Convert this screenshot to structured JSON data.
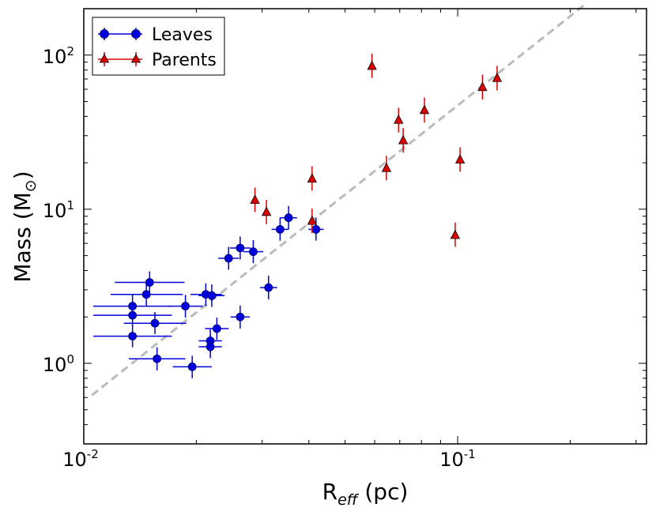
{
  "chart_data": {
    "type": "scatter",
    "xscale": "log",
    "yscale": "log",
    "xlim": [
      0.01,
      0.32
    ],
    "ylim": [
      0.3,
      200
    ],
    "xlabel": {
      "base": "R",
      "sub": "eff",
      "unit": " (pc)"
    },
    "ylabel": {
      "text": "Mass (M",
      "sub": "⊙",
      "close": ")"
    },
    "xticks": [
      {
        "value": 0.01,
        "base": "10",
        "exp": "-2"
      },
      {
        "value": 0.1,
        "base": "10",
        "exp": "-1"
      }
    ],
    "yticks": [
      {
        "value": 1,
        "base": "10",
        "exp": "0"
      },
      {
        "value": 10,
        "base": "10",
        "exp": "1"
      },
      {
        "value": 100,
        "base": "10",
        "exp": "2"
      }
    ],
    "legend": {
      "position": "top-left"
    },
    "fit_line": {
      "style": "dashed",
      "color": "#bbbbbb",
      "points": [
        [
          0.0105,
          0.62
        ],
        [
          0.218,
          211
        ]
      ]
    },
    "series": [
      {
        "name": "Leaves",
        "marker": "circle",
        "color": "#0000dd",
        "points": [
          {
            "x": 0.0135,
            "y": 2.35,
            "xlo": 0.0106,
            "xhi": 0.0172,
            "ylo": 1.98,
            "yhi": 2.78
          },
          {
            "x": 0.0135,
            "y": 2.05,
            "xlo": 0.0106,
            "xhi": 0.0172,
            "ylo": 1.73,
            "yhi": 2.42
          },
          {
            "x": 0.0135,
            "y": 1.5,
            "xlo": 0.0106,
            "xhi": 0.0172,
            "ylo": 1.27,
            "yhi": 1.78
          },
          {
            "x": 0.0147,
            "y": 2.8,
            "xlo": 0.0118,
            "xhi": 0.0184,
            "ylo": 2.35,
            "yhi": 3.3
          },
          {
            "x": 0.015,
            "y": 3.35,
            "xlo": 0.0121,
            "xhi": 0.0186,
            "ylo": 2.85,
            "yhi": 3.95
          },
          {
            "x": 0.0155,
            "y": 1.82,
            "xlo": 0.0128,
            "xhi": 0.0188,
            "ylo": 1.55,
            "yhi": 2.15
          },
          {
            "x": 0.0157,
            "y": 1.07,
            "xlo": 0.0132,
            "xhi": 0.0187,
            "ylo": 0.9,
            "yhi": 1.27
          },
          {
            "x": 0.0187,
            "y": 2.35,
            "xlo": 0.0168,
            "xhi": 0.0208,
            "ylo": 1.98,
            "yhi": 2.78
          },
          {
            "x": 0.0195,
            "y": 0.95,
            "xlo": 0.0173,
            "xhi": 0.022,
            "ylo": 0.8,
            "yhi": 1.12
          },
          {
            "x": 0.0212,
            "y": 2.8,
            "xlo": 0.0193,
            "xhi": 0.0234,
            "ylo": 2.35,
            "yhi": 3.3
          },
          {
            "x": 0.022,
            "y": 2.75,
            "xlo": 0.0203,
            "xhi": 0.0238,
            "ylo": 2.32,
            "yhi": 3.25
          },
          {
            "x": 0.0218,
            "y": 1.4,
            "xlo": 0.0203,
            "xhi": 0.0234,
            "ylo": 1.18,
            "yhi": 1.66
          },
          {
            "x": 0.0218,
            "y": 1.28,
            "xlo": 0.0203,
            "xhi": 0.0234,
            "ylo": 1.08,
            "yhi": 1.52
          },
          {
            "x": 0.0227,
            "y": 1.68,
            "xlo": 0.0211,
            "xhi": 0.0244,
            "ylo": 1.42,
            "yhi": 1.98
          },
          {
            "x": 0.0244,
            "y": 4.8,
            "xlo": 0.0229,
            "xhi": 0.026,
            "ylo": 4.05,
            "yhi": 5.7
          },
          {
            "x": 0.0262,
            "y": 5.6,
            "xlo": 0.0246,
            "xhi": 0.0279,
            "ylo": 4.72,
            "yhi": 6.65
          },
          {
            "x": 0.0284,
            "y": 5.3,
            "xlo": 0.0267,
            "xhi": 0.0302,
            "ylo": 4.47,
            "yhi": 6.3
          },
          {
            "x": 0.0262,
            "y": 2.0,
            "xlo": 0.0247,
            "xhi": 0.0278,
            "ylo": 1.68,
            "yhi": 2.37
          },
          {
            "x": 0.0312,
            "y": 3.1,
            "xlo": 0.0296,
            "xhi": 0.0329,
            "ylo": 2.6,
            "yhi": 3.7
          },
          {
            "x": 0.0335,
            "y": 7.4,
            "xlo": 0.0318,
            "xhi": 0.0353,
            "ylo": 6.25,
            "yhi": 8.8
          },
          {
            "x": 0.0353,
            "y": 8.8,
            "xlo": 0.0335,
            "xhi": 0.0372,
            "ylo": 7.4,
            "yhi": 10.5
          },
          {
            "x": 0.0418,
            "y": 7.4,
            "xlo": 0.0399,
            "xhi": 0.0438,
            "ylo": 6.25,
            "yhi": 8.8
          }
        ]
      },
      {
        "name": "Parents",
        "marker": "triangle",
        "color": "#dd0000",
        "points": [
          {
            "x": 0.0287,
            "y": 11.5,
            "ylo": 9.6,
            "yhi": 13.8
          },
          {
            "x": 0.0308,
            "y": 9.6,
            "ylo": 8.0,
            "yhi": 11.5
          },
          {
            "x": 0.0408,
            "y": 15.8,
            "ylo": 13.2,
            "yhi": 19.0
          },
          {
            "x": 0.0408,
            "y": 8.4,
            "ylo": 7.0,
            "yhi": 10.1
          },
          {
            "x": 0.059,
            "y": 85,
            "ylo": 71,
            "yhi": 102
          },
          {
            "x": 0.0645,
            "y": 18.5,
            "ylo": 15.4,
            "yhi": 22.2
          },
          {
            "x": 0.0695,
            "y": 38,
            "ylo": 31.5,
            "yhi": 45.5
          },
          {
            "x": 0.0715,
            "y": 28,
            "ylo": 23.3,
            "yhi": 33.6
          },
          {
            "x": 0.0815,
            "y": 44,
            "ylo": 36.5,
            "yhi": 53
          },
          {
            "x": 0.0985,
            "y": 6.8,
            "ylo": 5.7,
            "yhi": 8.2
          },
          {
            "x": 0.1015,
            "y": 21,
            "ylo": 17.5,
            "yhi": 25.2
          },
          {
            "x": 0.1165,
            "y": 62,
            "ylo": 51.5,
            "yhi": 74.5
          },
          {
            "x": 0.1275,
            "y": 71,
            "ylo": 59,
            "yhi": 85
          }
        ]
      }
    ]
  }
}
